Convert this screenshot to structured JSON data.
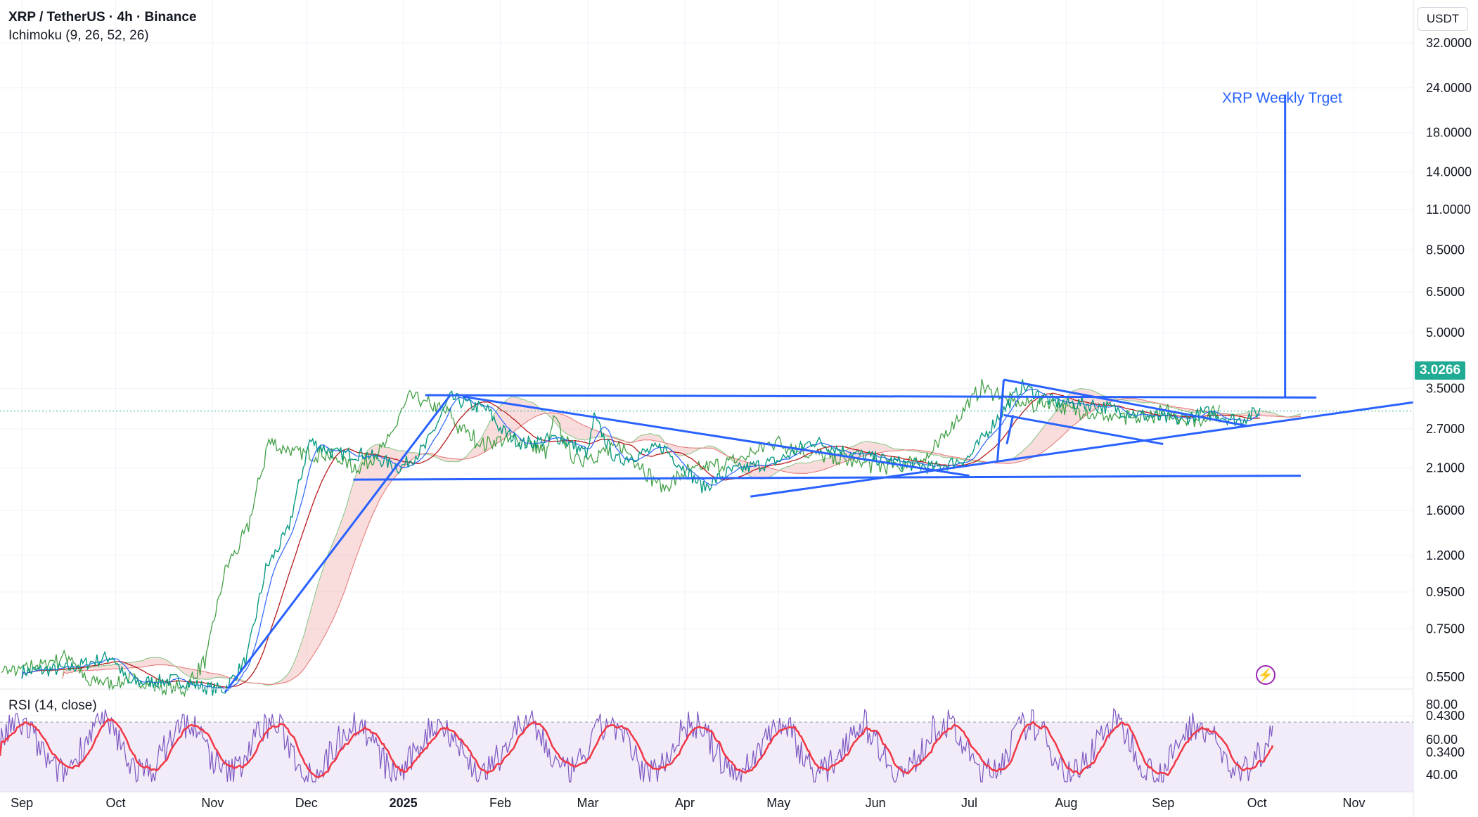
{
  "legend": {
    "title": "XRP / TetherUS · 4h · Binance",
    "indicator": "Ichimoku (9, 26, 52, 26)"
  },
  "rsi": {
    "label": "RSI (14, close)"
  },
  "currency": "USDT",
  "last_price": "3.0266",
  "annotation": "XRP Weekly Trget",
  "icons": {
    "alert": "lightning-icon"
  },
  "colors": {
    "price_line": "#089981",
    "conversion_line": "#2962ff",
    "base_line": "#b71c1c",
    "lagging_span": "#43a047",
    "cloud_bull": "#a5d6a7",
    "cloud_bear": "#ef9a9a",
    "drawing": "#2962ff",
    "rsi_line": "#7e57c2",
    "rsi_ma": "#f23645",
    "rsi_band": "#ede7f6",
    "badge": "#22ab94"
  },
  "chart_data": {
    "type": "line",
    "scale": "log",
    "x_ticks": [
      "Sep",
      "Oct",
      "Nov",
      "Dec",
      "2025",
      "Feb",
      "Mar",
      "Apr",
      "May",
      "Jun",
      "Jul",
      "Aug",
      "Sep",
      "Oct",
      "Nov"
    ],
    "y_ticks": [
      "32.0000",
      "24.0000",
      "18.0000",
      "14.0000",
      "11.0000",
      "8.5000",
      "6.5000",
      "5.0000",
      "3.5000",
      "2.7000",
      "2.1000",
      "1.6000",
      "1.2000",
      "0.9500",
      "0.7500",
      "0.5500",
      "0.4300",
      "0.3400"
    ],
    "y_tick_values": [
      32,
      24,
      18,
      14,
      11,
      8.5,
      6.5,
      5,
      3.5,
      2.7,
      2.1,
      1.6,
      1.2,
      0.95,
      0.75,
      0.55,
      0.43,
      0.34
    ],
    "last_price": 3.0266,
    "price_path": [
      [
        "2024-09-01",
        0.57
      ],
      [
        "2024-09-15",
        0.58
      ],
      [
        "2024-09-30",
        0.63
      ],
      [
        "2024-10-05",
        0.53
      ],
      [
        "2024-10-20",
        0.54
      ],
      [
        "2024-11-01",
        0.51
      ],
      [
        "2024-11-05",
        0.51
      ],
      [
        "2024-11-12",
        0.62
      ],
      [
        "2024-11-18",
        1.1
      ],
      [
        "2024-11-25",
        1.4
      ],
      [
        "2024-12-02",
        2.5
      ],
      [
        "2024-12-10",
        2.3
      ],
      [
        "2024-12-20",
        2.3
      ],
      [
        "2024-12-31",
        2.1
      ],
      [
        "2025-01-08",
        2.4
      ],
      [
        "2025-01-16",
        3.3
      ],
      [
        "2025-01-22",
        3.15
      ],
      [
        "2025-01-28",
        3.05
      ],
      [
        "2025-02-01",
        2.7
      ],
      [
        "2025-02-08",
        2.45
      ],
      [
        "2025-02-20",
        2.55
      ],
      [
        "2025-03-01",
        2.3
      ],
      [
        "2025-03-03",
        2.9
      ],
      [
        "2025-03-10",
        2.2
      ],
      [
        "2025-03-25",
        2.4
      ],
      [
        "2025-04-07",
        1.85
      ],
      [
        "2025-04-15",
        2.05
      ],
      [
        "2025-05-01",
        2.2
      ],
      [
        "2025-05-12",
        2.5
      ],
      [
        "2025-05-25",
        2.3
      ],
      [
        "2025-06-05",
        2.2
      ],
      [
        "2025-06-20",
        2.1
      ],
      [
        "2025-07-01",
        2.25
      ],
      [
        "2025-07-10",
        2.9
      ],
      [
        "2025-07-18",
        3.55
      ],
      [
        "2025-07-28",
        3.2
      ],
      [
        "2025-08-10",
        3.15
      ],
      [
        "2025-08-25",
        2.95
      ],
      [
        "2025-09-05",
        2.85
      ],
      [
        "2025-09-15",
        3.0
      ],
      [
        "2025-09-25",
        2.85
      ],
      [
        "2025-10-02",
        3.03
      ]
    ],
    "drawings": [
      {
        "name": "rally-trendline",
        "points": [
          [
            "2024-11-05",
            0.5
          ],
          [
            "2025-01-16",
            3.35
          ]
        ]
      },
      {
        "name": "range-top",
        "points": [
          [
            "2025-01-08",
            3.35
          ],
          [
            "2025-10-20",
            3.3
          ]
        ]
      },
      {
        "name": "range-bottom",
        "points": [
          [
            "2024-12-16",
            1.95
          ],
          [
            "2025-10-15",
            2.0
          ]
        ]
      },
      {
        "name": "descending-line",
        "points": [
          [
            "2025-01-20",
            3.32
          ],
          [
            "2025-07-01",
            2.0
          ]
        ]
      },
      {
        "name": "rising-support",
        "points": [
          [
            "2025-04-22",
            1.75
          ],
          [
            "2025-11-20",
            3.2
          ]
        ]
      },
      {
        "name": "flag-top",
        "points": [
          [
            "2025-07-12",
            3.7
          ],
          [
            "2025-09-28",
            2.75
          ]
        ]
      },
      {
        "name": "flag-bottom",
        "points": [
          [
            "2025-07-12",
            2.95
          ],
          [
            "2025-09-01",
            2.45
          ]
        ]
      },
      {
        "name": "impulse-leg-1",
        "points": [
          [
            "2025-07-10",
            2.2
          ],
          [
            "2025-07-12",
            3.7
          ]
        ]
      },
      {
        "name": "impulse-leg-2",
        "points": [
          [
            "2025-07-13",
            2.45
          ],
          [
            "2025-07-15",
            2.95
          ]
        ]
      },
      {
        "name": "target-vertical",
        "points": [
          [
            "2025-10-10",
            3.3
          ],
          [
            "2025-10-10",
            23.0
          ]
        ]
      }
    ],
    "rsi": {
      "y_ticks": [
        "80.00",
        "60.00",
        "40.00"
      ],
      "y_tick_values": [
        80,
        60,
        40
      ],
      "band": [
        30,
        70
      ],
      "last_value": 68
    }
  }
}
